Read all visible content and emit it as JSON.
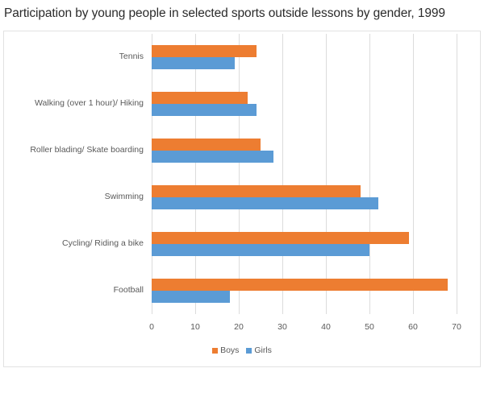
{
  "chart_data": {
    "type": "bar",
    "orientation": "horizontal",
    "title": "Participation by young people in selected sports outside lessons by gender, 1999",
    "xlabel": "",
    "ylabel": "",
    "categories": [
      "Tennis",
      "Walking (over 1 hour)/ Hiking",
      "Roller blading/ Skate boarding",
      "Swimming",
      "Cycling/ Riding a bike",
      "Football"
    ],
    "series": [
      {
        "name": "Boys",
        "color": "#ed7d31",
        "values": [
          24,
          22,
          25,
          48,
          59,
          68
        ]
      },
      {
        "name": "Girls",
        "color": "#5b9bd5",
        "values": [
          19,
          24,
          28,
          52,
          50,
          18
        ]
      }
    ],
    "xlim": [
      0,
      70
    ],
    "xticks": [
      "0",
      "10",
      "20",
      "30",
      "40",
      "50",
      "60",
      "70"
    ],
    "grid": "vertical",
    "legend_position": "bottom"
  },
  "legend": {
    "boys_label": "Boys",
    "girls_label": "Girls"
  }
}
